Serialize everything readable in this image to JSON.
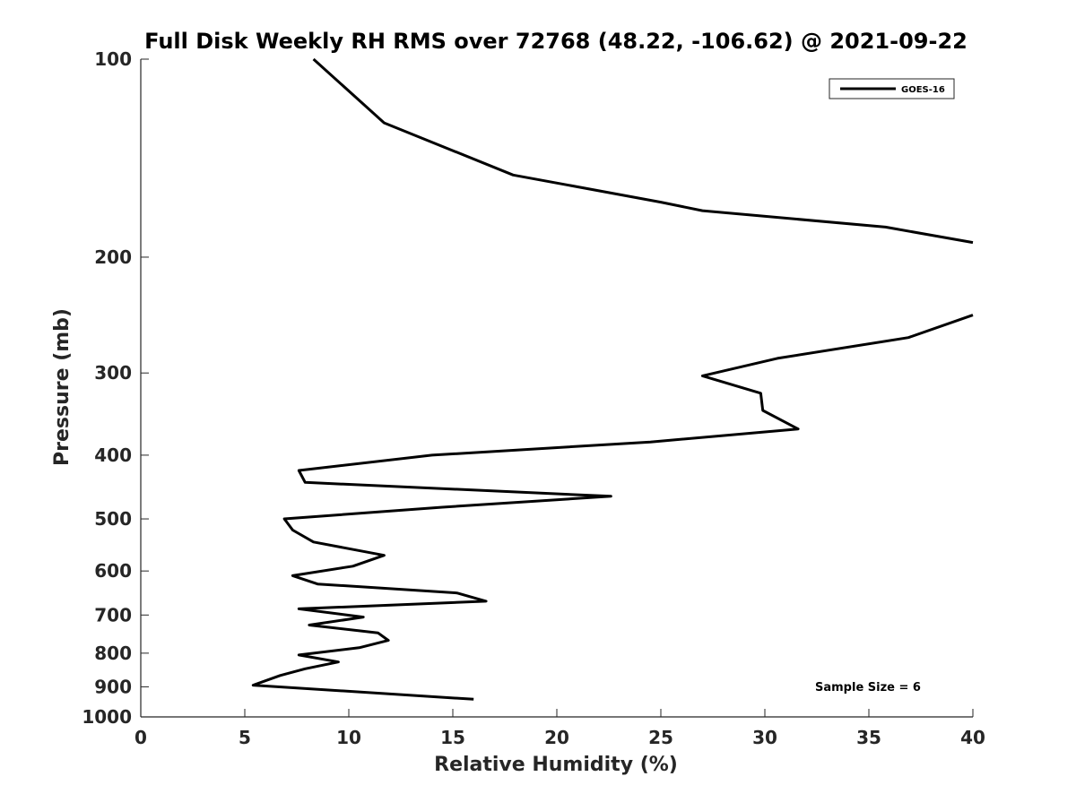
{
  "chart_data": {
    "type": "line",
    "title": "Full Disk Weekly RH RMS over 72768 (48.22, -106.62) @ 2021-09-22",
    "xlabel": "Relative Humidity (%)",
    "ylabel": "Pressure (mb)",
    "xlim": [
      0,
      40
    ],
    "ylim": [
      100,
      1000
    ],
    "y_scale": "log",
    "y_reversed": true,
    "x_ticks": [
      "0",
      "5",
      "10",
      "15",
      "20",
      "25",
      "30",
      "35",
      "40"
    ],
    "y_ticks": [
      "100",
      "200",
      "300",
      "400",
      "500",
      "600",
      "700",
      "800",
      "900",
      "1000"
    ],
    "grid": false,
    "legend_position": "top-right",
    "annotation": "Sample Size = 6",
    "series": [
      {
        "name": "GOES-16",
        "color": "#000000",
        "segments": [
          {
            "x": [
              8.3,
              11.7,
              17.9,
              25.0,
              27.0,
              35.8,
              40.0
            ],
            "y": [
              100,
              125,
              150,
              165,
              170,
              180,
              190
            ]
          },
          {
            "x": [
              40.0,
              36.9,
              30.6,
              27.0,
              29.8,
              29.9,
              31.6,
              24.5,
              14.0,
              7.6,
              7.9,
              22.6,
              14.5,
              6.9,
              7.3,
              8.3,
              11.7,
              10.2,
              7.3,
              8.5,
              15.2,
              16.6,
              7.6,
              10.7,
              8.1,
              11.4,
              11.9,
              10.5,
              7.6,
              9.5,
              7.9,
              6.7,
              5.4,
              16.0
            ],
            "y": [
              245,
              265,
              285,
              303,
              322,
              342,
              365,
              382,
              400,
              422,
              440,
              462,
              480,
              500,
              520,
              542,
              568,
              590,
              610,
              628,
              648,
              667,
              685,
              705,
              725,
              745,
              765,
              785,
              805,
              825,
              845,
              865,
              895,
              940
            ]
          }
        ]
      }
    ]
  }
}
